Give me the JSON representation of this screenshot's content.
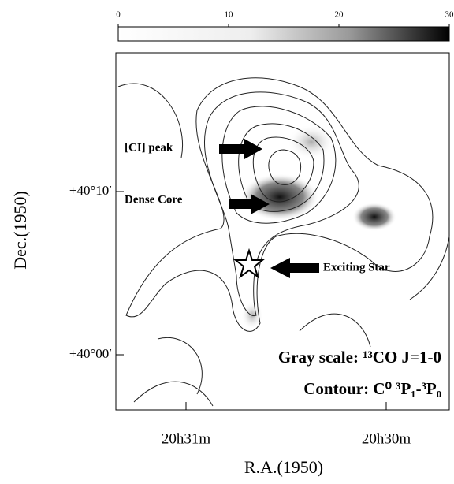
{
  "chart_data": {
    "type": "contour-map",
    "xlabel": "R.A.(1950)",
    "ylabel": "Dec.(1950)",
    "xtick_labels": [
      "20h31m",
      "20h30m"
    ],
    "ytick_labels": [
      "+40°10′",
      "+40°00′"
    ],
    "colorbar": {
      "lim": [
        0,
        30
      ],
      "ticks": [
        0,
        10,
        20,
        30
      ]
    },
    "annotations": [
      "[CI] peak",
      "Dense Core",
      "Exciting Star",
      "Gray scale: ¹³CO J=1-0",
      "Contour: C⁰ ³P₁-³P₀"
    ]
  }
}
